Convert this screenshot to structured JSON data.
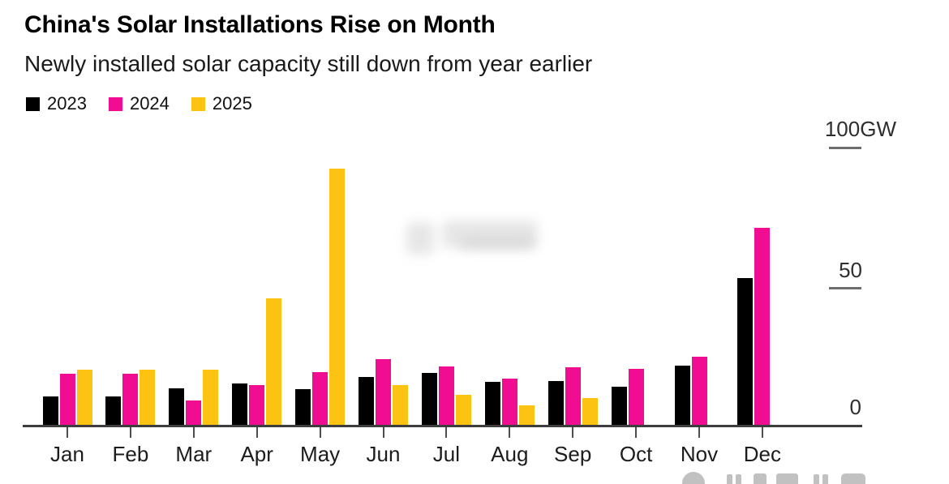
{
  "header": {
    "title": "China's Solar Installations Rise on Month",
    "subtitle": "Newly installed solar capacity still down from year earlier"
  },
  "legend": {
    "items": [
      {
        "label": "2023",
        "color": "#000000"
      },
      {
        "label": "2024",
        "color": "#f10d92"
      },
      {
        "label": "2025",
        "color": "#fdc312"
      }
    ]
  },
  "chart_data": {
    "type": "bar",
    "title": "China's Solar Installations Rise on Month",
    "subtitle": "Newly installed solar capacity still down from year earlier",
    "unit": "GW",
    "categories": [
      "Jan",
      "Feb",
      "Mar",
      "Apr",
      "May",
      "Jun",
      "Jul",
      "Aug",
      "Sep",
      "Oct",
      "Nov",
      "Dec"
    ],
    "series": [
      {
        "name": "2023",
        "color": "#000000",
        "values": [
          10.2,
          10.2,
          13.2,
          14.9,
          12.9,
          17.4,
          18.9,
          15.7,
          15.9,
          13.7,
          21.4,
          53.2
        ]
      },
      {
        "name": "2024",
        "color": "#f10d92",
        "values": [
          18.4,
          18.4,
          8.8,
          14.5,
          19.2,
          23.8,
          21.2,
          16.7,
          20.9,
          20.4,
          24.8,
          71.5
        ]
      },
      {
        "name": "2025",
        "color": "#fdc312",
        "values": [
          20.0,
          20.0,
          20.1,
          45.8,
          93.0,
          14.5,
          10.8,
          7.2,
          9.7,
          null,
          null,
          null
        ]
      }
    ],
    "y_axis": {
      "position": "right",
      "ticks": [
        {
          "value": 100,
          "label": "100GW"
        },
        {
          "value": 50,
          "label": "50"
        },
        {
          "value": 0,
          "label": "0"
        }
      ]
    },
    "ylim": [
      0,
      105
    ],
    "legend_position": "top-left",
    "grid": false,
    "colors": {
      "background": "#ffffff",
      "axis": "#3d3d3d",
      "tick": "#6e6e6e"
    }
  }
}
